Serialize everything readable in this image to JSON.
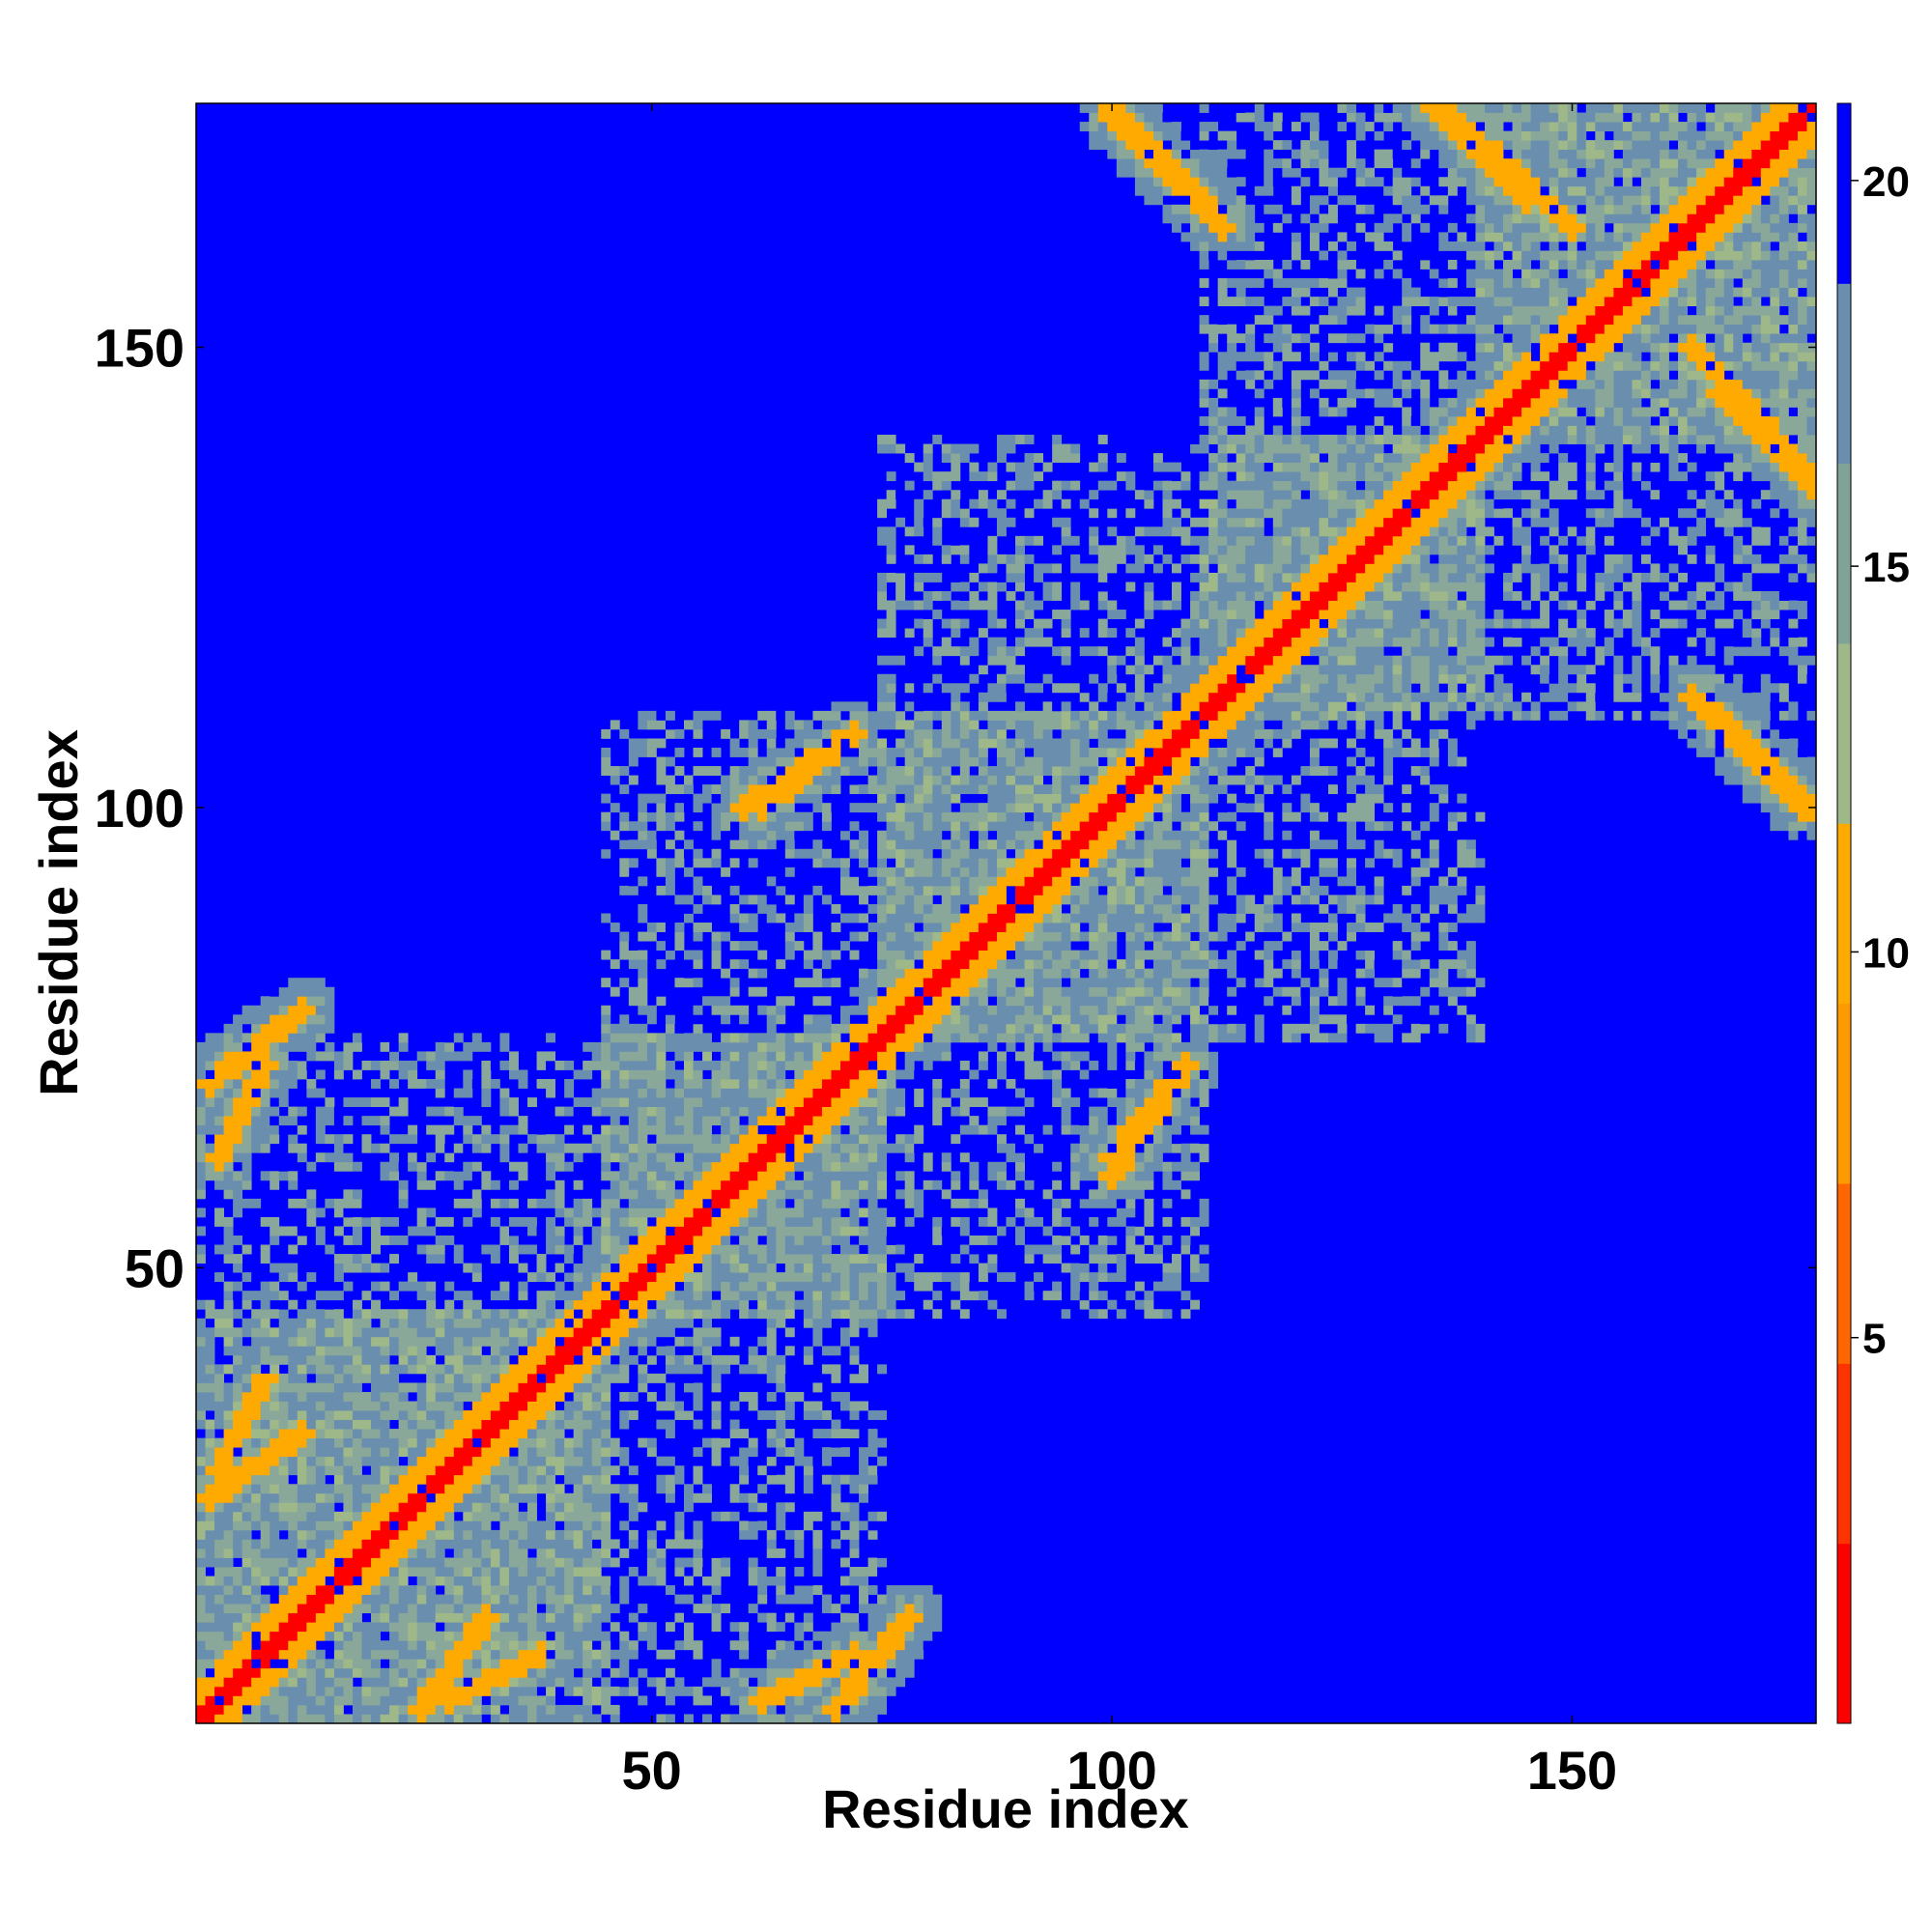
{
  "chart_data": {
    "type": "heatmap",
    "title": "",
    "xlabel": "Residue index",
    "ylabel": "Residue index",
    "xlim": [
      1,
      176
    ],
    "ylim": [
      1,
      176
    ],
    "x_ticks": [
      50,
      100,
      150
    ],
    "y_ticks": [
      50,
      100,
      150
    ],
    "colorbar": {
      "ticks": [
        5,
        10,
        15,
        20
      ],
      "range": [
        0,
        21
      ],
      "colors_low_to_high": [
        "#ff0000",
        "#ff3300",
        "#ff6600",
        "#ff9900",
        "#ffaa00",
        "#9fb88a",
        "#7fa396",
        "#6a8fae",
        "#0000ff"
      ]
    },
    "colors": {
      "far": "#0000ff",
      "mid": "#6a8fae",
      "near": "#9fb88a",
      "close": "#ff9900",
      "contact": "#ff0000"
    },
    "features": {
      "diagonal": [
        [
          1,
          1
        ],
        [
          176,
          176
        ]
      ],
      "helix_blocks": [
        [
          1,
          45
        ],
        [
          45,
          75
        ],
        [
          75,
          110
        ],
        [
          110,
          140
        ],
        [
          140,
          176
        ]
      ],
      "contact_bands": [
        {
          "from": [
            2,
            70
          ],
          "to": [
            12,
            78
          ]
        },
        {
          "from": [
            2,
            25
          ],
          "to": [
            12,
            32
          ]
        },
        {
          "from": [
            62,
            3
          ],
          "to": [
            72,
            8
          ]
        },
        {
          "from": [
            28,
            3
          ],
          "to": [
            38,
            8
          ]
        },
        {
          "from": [
            60,
            100
          ],
          "to": [
            72,
            108
          ]
        },
        {
          "from": [
            100,
            62
          ],
          "to": [
            108,
            72
          ]
        },
        {
          "from": [
            100,
            175
          ],
          "to": [
            112,
            163
          ]
        },
        {
          "from": [
            136,
            176
          ],
          "to": [
            150,
            163
          ]
        },
        {
          "from": [
            166,
            110
          ],
          "to": [
            176,
            100
          ]
        },
        {
          "from": [
            166,
            145
          ],
          "to": [
            176,
            135
          ]
        }
      ]
    }
  }
}
